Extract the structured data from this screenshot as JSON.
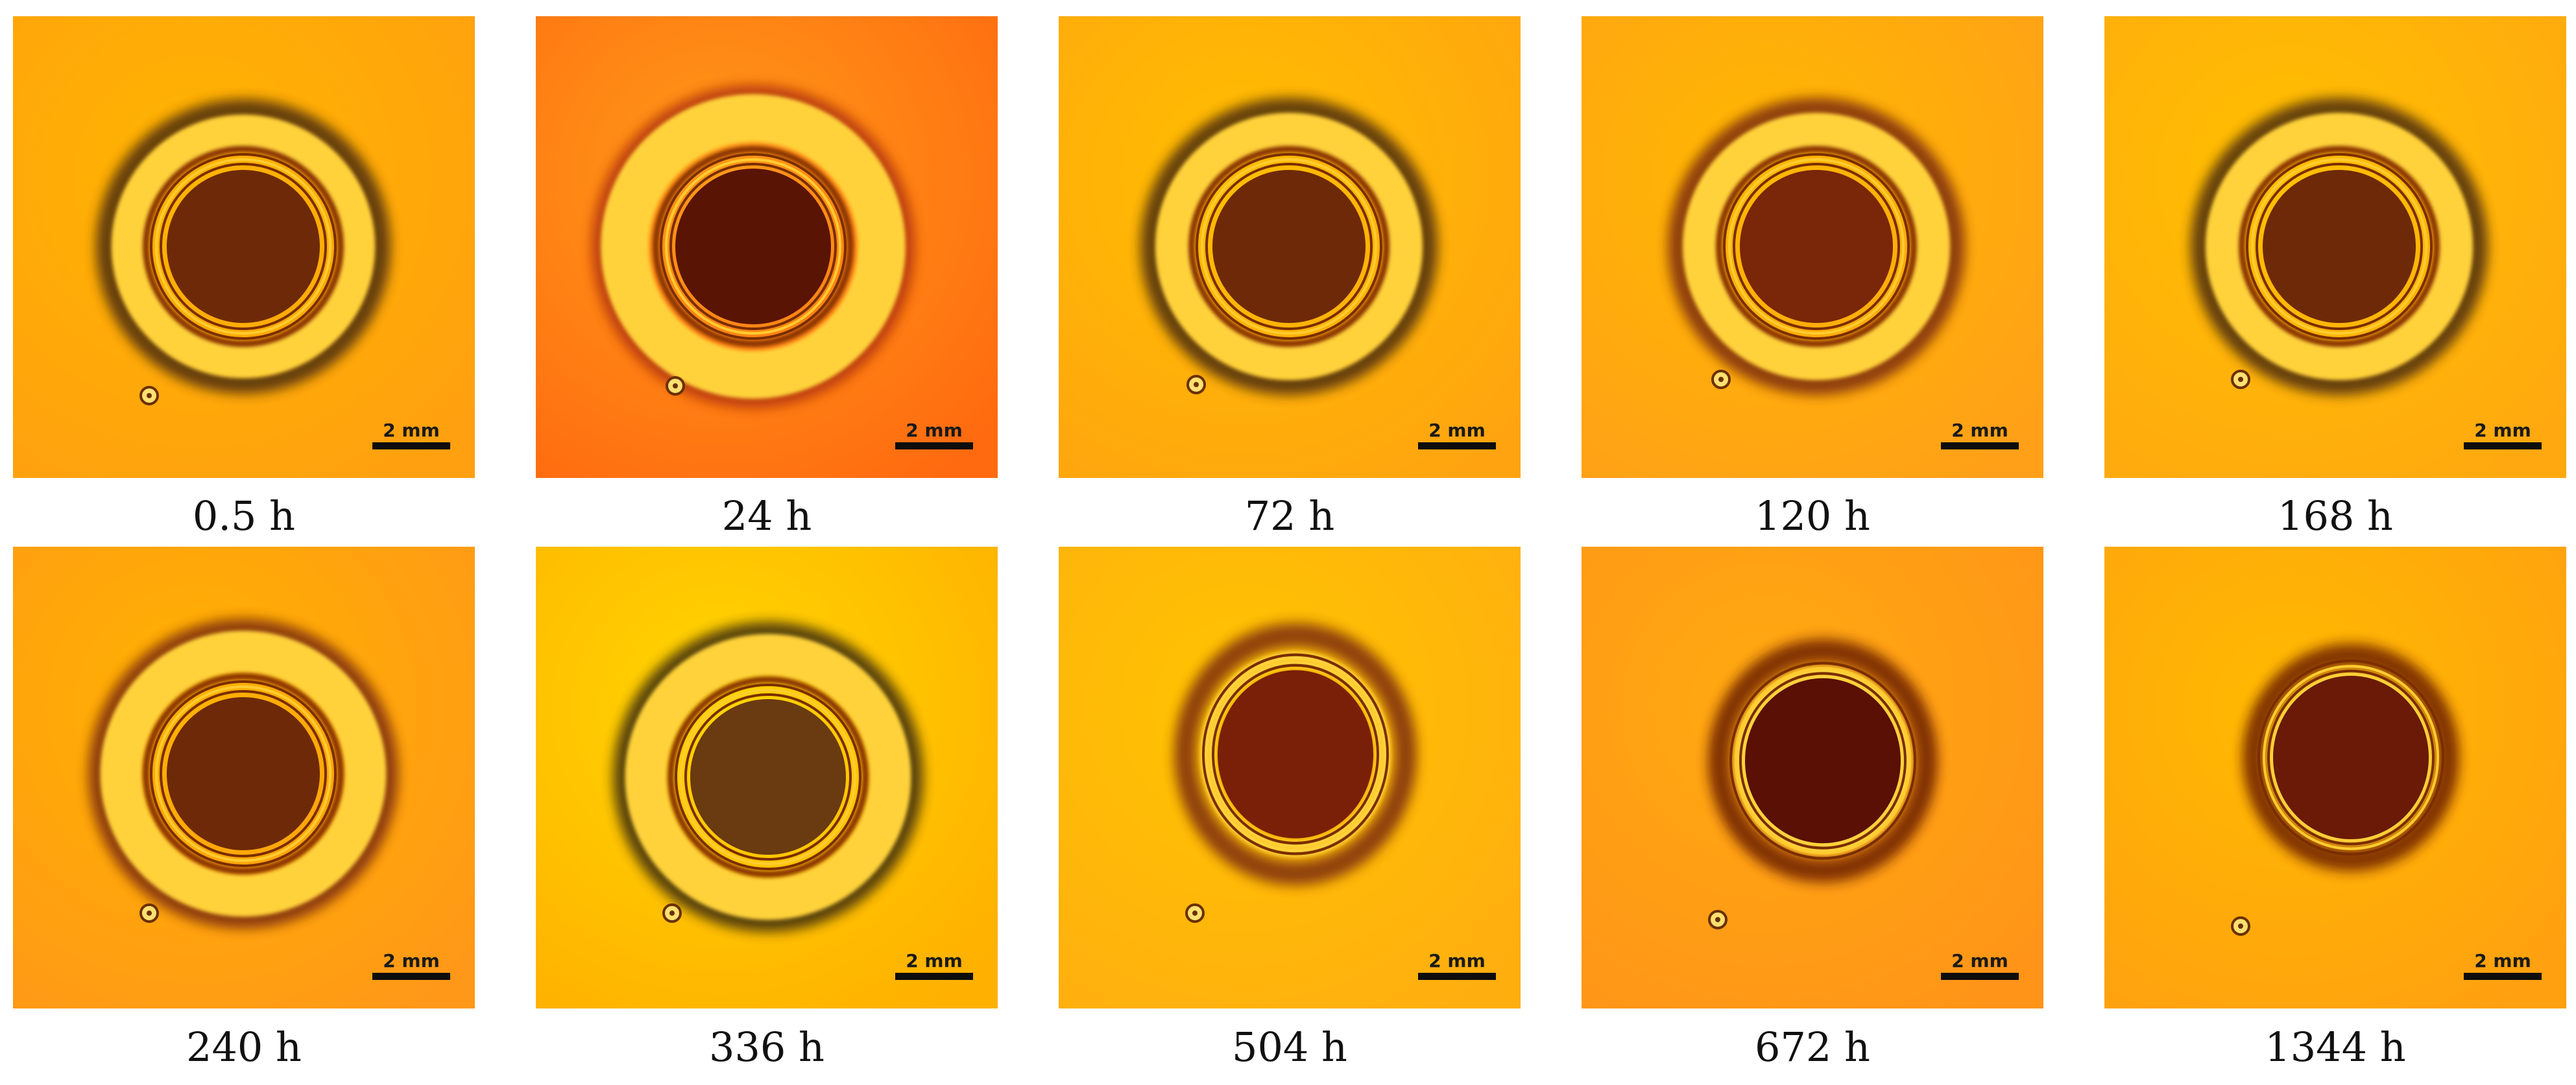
{
  "panels": [
    {
      "caption": "0.5 h",
      "scale_label": "2 mm"
    },
    {
      "caption": "24 h",
      "scale_label": "2 mm"
    },
    {
      "caption": "72 h",
      "scale_label": "2 mm"
    },
    {
      "caption": "120 h",
      "scale_label": "2 mm"
    },
    {
      "caption": "168 h",
      "scale_label": "2 mm"
    },
    {
      "caption": "240 h",
      "scale_label": "2 mm"
    },
    {
      "caption": "336 h",
      "scale_label": "2 mm"
    },
    {
      "caption": "504 h",
      "scale_label": "2 mm"
    },
    {
      "caption": "672 h",
      "scale_label": "2 mm"
    },
    {
      "caption": "1344 h",
      "scale_label": "2 mm"
    }
  ],
  "colors": {
    "background_yellow": "#ffc000",
    "background_orange": "#ff9a10",
    "core_dark": "#6e2a08",
    "ring_dark": "#7a3400",
    "ring_light": "#ffd640"
  }
}
